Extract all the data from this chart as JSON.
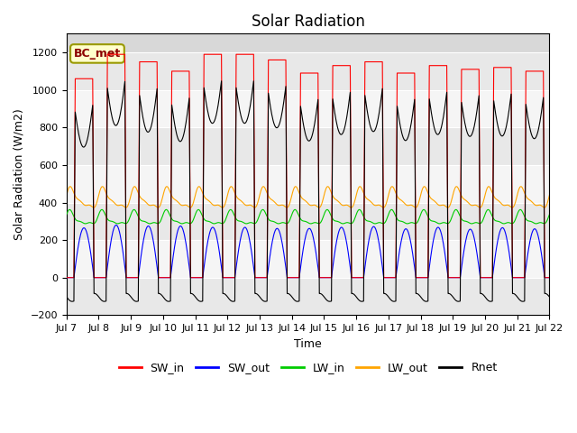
{
  "title": "Solar Radiation",
  "xlabel": "Time",
  "ylabel": "Solar Radiation (W/m2)",
  "ylim": [
    -200,
    1300
  ],
  "yticks": [
    -200,
    0,
    200,
    400,
    600,
    800,
    1000,
    1200
  ],
  "start_day": 7,
  "end_day": 22,
  "colors": {
    "SW_in": "#ff0000",
    "SW_out": "#0000ff",
    "LW_in": "#00cc00",
    "LW_out": "#ffa500",
    "Rnet": "#000000"
  },
  "legend_label": "BC_met",
  "background_color": "#d8d8d8",
  "grid_color": "#f0f0f0",
  "title_fontsize": 12,
  "axis_fontsize": 9,
  "tick_fontsize": 8
}
